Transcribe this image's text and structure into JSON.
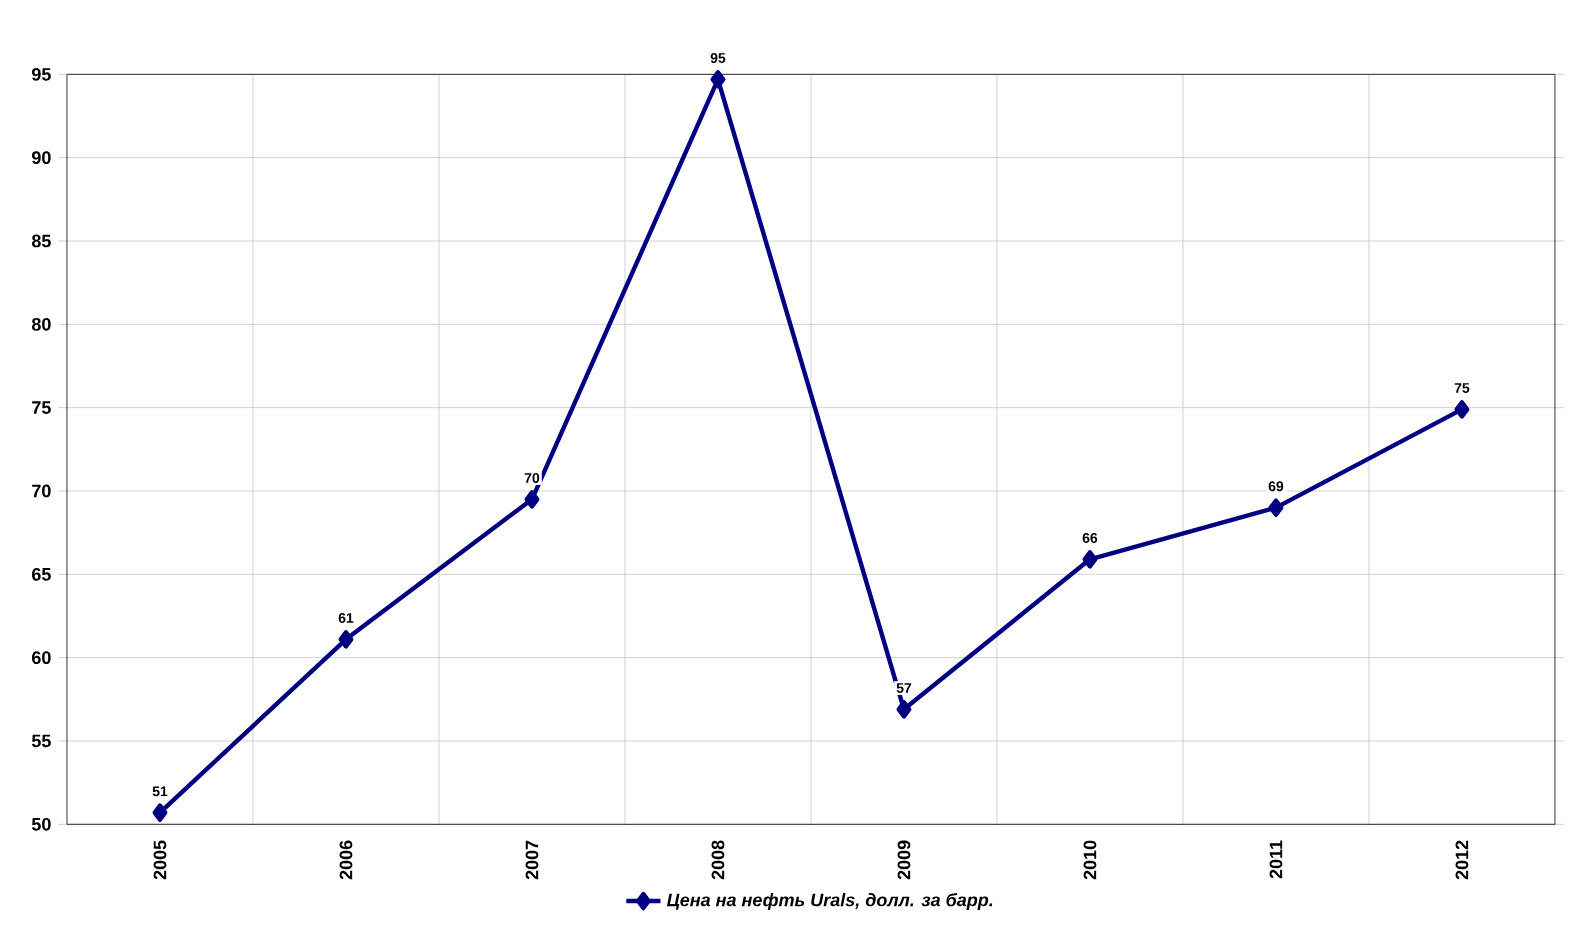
{
  "chart_data": {
    "type": "line",
    "categories": [
      "2005",
      "2006",
      "2007",
      "2008",
      "2009",
      "2010",
      "2011",
      "2012"
    ],
    "series": [
      {
        "name": "Цена на нефть Urals, долл. за барр.",
        "color": "#000080",
        "values": [
          50.7,
          61.1,
          69.5,
          94.7,
          56.9,
          65.9,
          69.0,
          74.9
        ],
        "value_labels": [
          "51",
          "61",
          "70",
          "95",
          "57",
          "66",
          "69",
          "75"
        ]
      }
    ],
    "ylim": [
      50,
      95
    ],
    "yticks": [
      50,
      55,
      60,
      65,
      70,
      75,
      80,
      85,
      90,
      95
    ],
    "grid": true,
    "legend": "bottom",
    "marker": "diamond",
    "line_style": "solid"
  }
}
